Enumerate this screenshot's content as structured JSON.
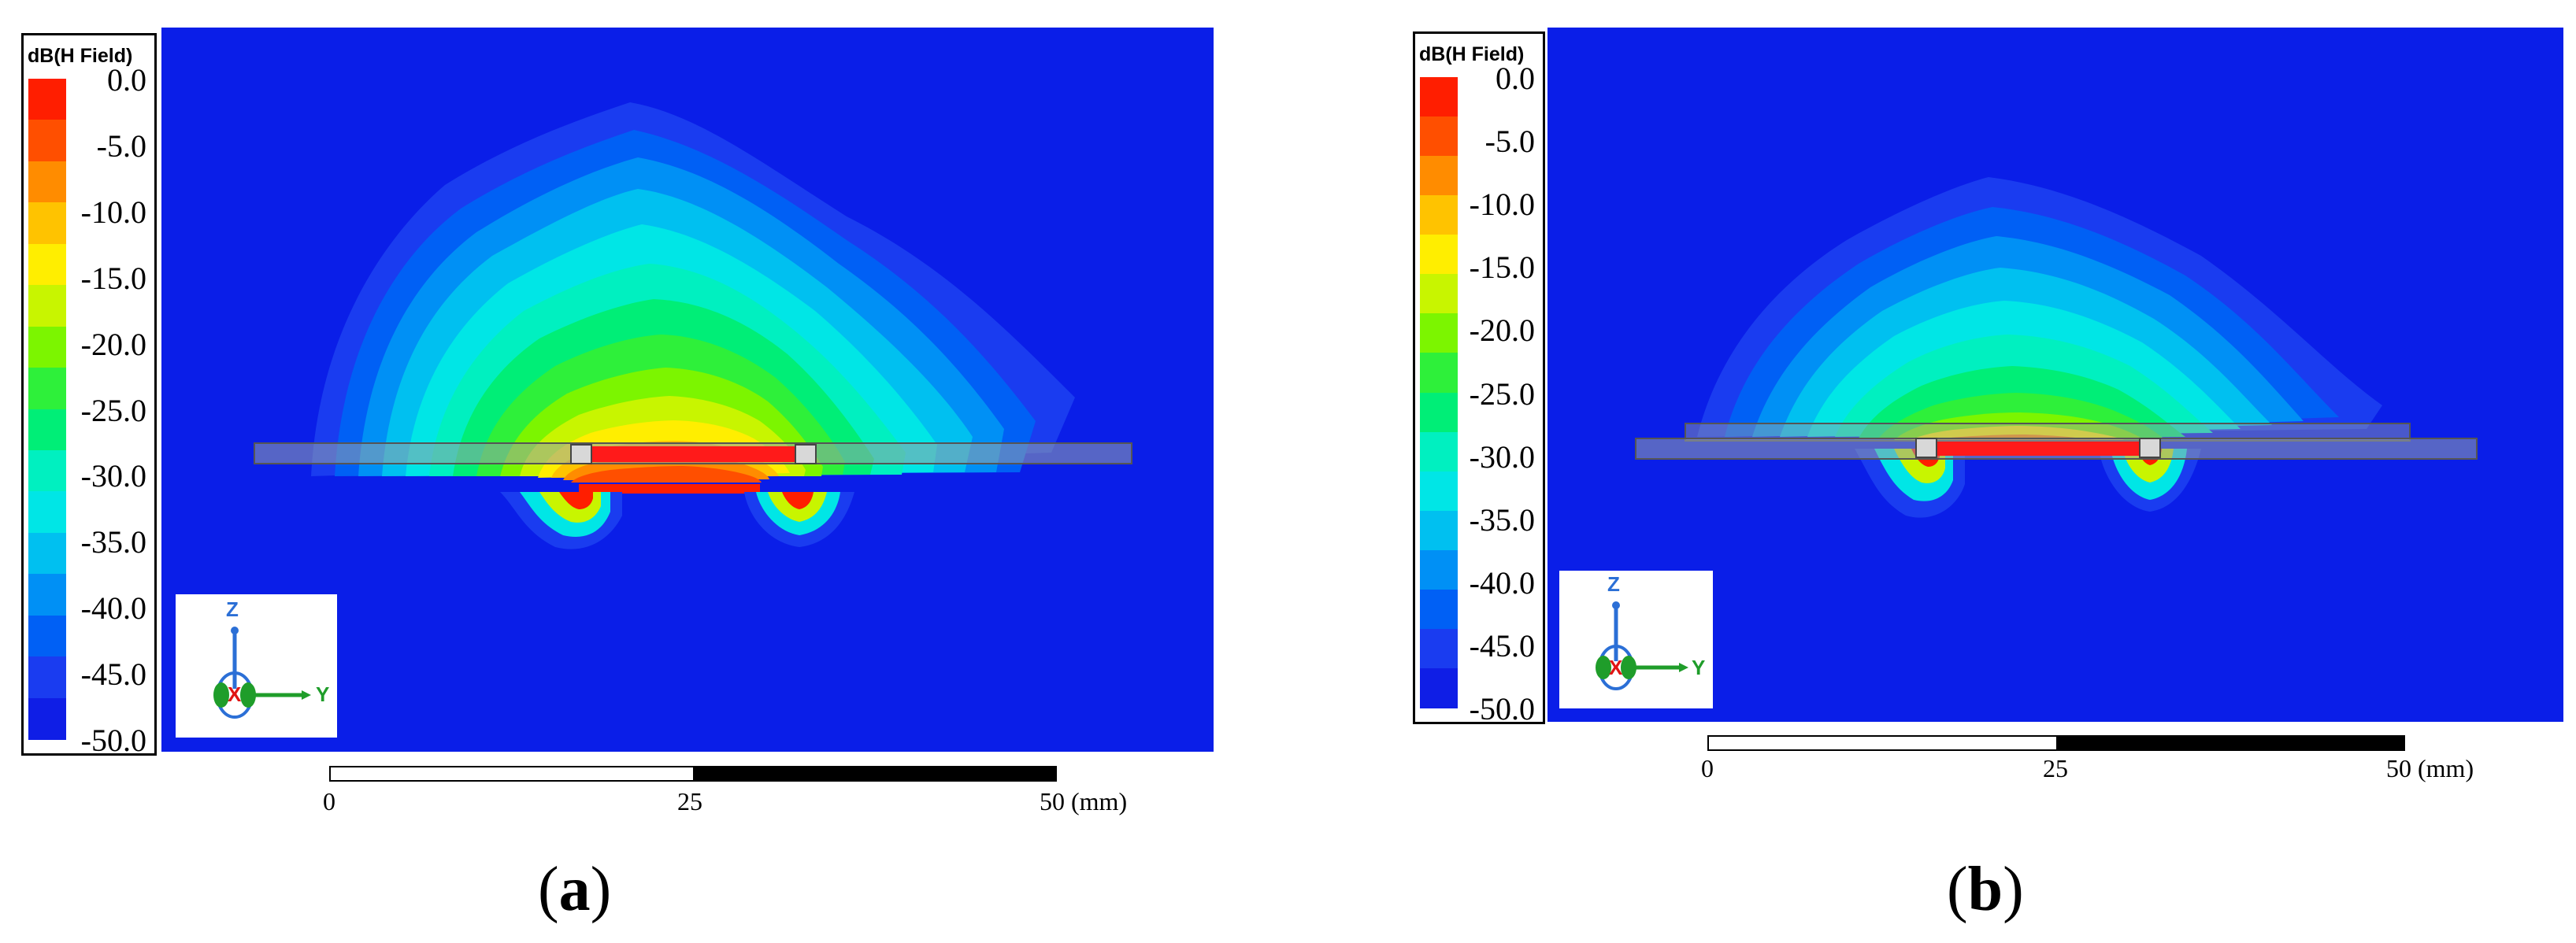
{
  "legend": {
    "title": "dB(H Field)",
    "ticks": [
      "0.0",
      "-5.0",
      "-10.0",
      "-15.0",
      "-20.0",
      "-25.0",
      "-30.0",
      "-35.0",
      "-40.0",
      "-45.0",
      "-50.0"
    ],
    "colors": [
      "#ff1e00",
      "#ff4f00",
      "#ff8c00",
      "#ffc300",
      "#ffee00",
      "#c8f500",
      "#7cf500",
      "#2ef03a",
      "#00ee77",
      "#00f0c0",
      "#00e6e6",
      "#00c0f0",
      "#0090f5",
      "#0060f5",
      "#1a3cf0",
      "#0f1ee6"
    ]
  },
  "plot": {
    "background_color": "#0a1ee8"
  },
  "triad": {
    "z_label": "Z",
    "x_label": "X",
    "y_label": "Y"
  },
  "scale": {
    "start": "0",
    "mid": "25",
    "end": "50 (mm)"
  },
  "panels": [
    {
      "caption_open": "(",
      "caption_letter": "a",
      "caption_close": ")"
    },
    {
      "caption_open": "(",
      "caption_letter": "b",
      "caption_close": ")"
    }
  ]
}
